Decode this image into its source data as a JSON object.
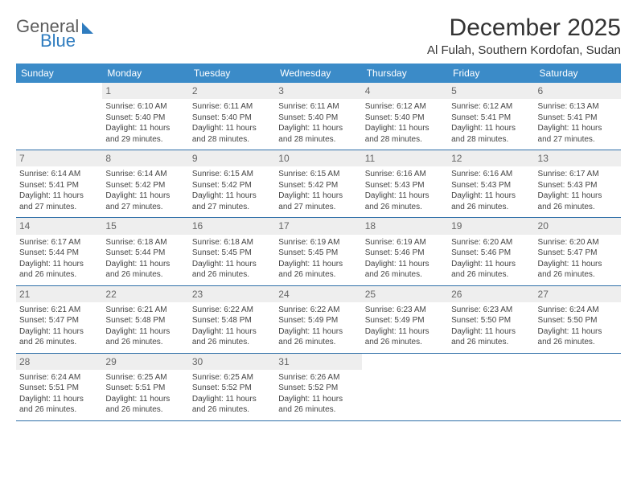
{
  "brand": {
    "general": "General",
    "blue": "Blue"
  },
  "header": {
    "month_title": "December 2025",
    "location": "Al Fulah, Southern Kordofan, Sudan"
  },
  "colors": {
    "header_bg": "#3b8bc8",
    "row_border": "#2f6fa8",
    "daynum_bg": "#eeeeee",
    "text": "#444444"
  },
  "weekdays": [
    "Sunday",
    "Monday",
    "Tuesday",
    "Wednesday",
    "Thursday",
    "Friday",
    "Saturday"
  ],
  "weeks": [
    [
      {
        "day": "",
        "lines": [
          "",
          "",
          "",
          ""
        ]
      },
      {
        "day": "1",
        "lines": [
          "Sunrise: 6:10 AM",
          "Sunset: 5:40 PM",
          "Daylight: 11 hours",
          "and 29 minutes."
        ]
      },
      {
        "day": "2",
        "lines": [
          "Sunrise: 6:11 AM",
          "Sunset: 5:40 PM",
          "Daylight: 11 hours",
          "and 28 minutes."
        ]
      },
      {
        "day": "3",
        "lines": [
          "Sunrise: 6:11 AM",
          "Sunset: 5:40 PM",
          "Daylight: 11 hours",
          "and 28 minutes."
        ]
      },
      {
        "day": "4",
        "lines": [
          "Sunrise: 6:12 AM",
          "Sunset: 5:40 PM",
          "Daylight: 11 hours",
          "and 28 minutes."
        ]
      },
      {
        "day": "5",
        "lines": [
          "Sunrise: 6:12 AM",
          "Sunset: 5:41 PM",
          "Daylight: 11 hours",
          "and 28 minutes."
        ]
      },
      {
        "day": "6",
        "lines": [
          "Sunrise: 6:13 AM",
          "Sunset: 5:41 PM",
          "Daylight: 11 hours",
          "and 27 minutes."
        ]
      }
    ],
    [
      {
        "day": "7",
        "lines": [
          "Sunrise: 6:14 AM",
          "Sunset: 5:41 PM",
          "Daylight: 11 hours",
          "and 27 minutes."
        ]
      },
      {
        "day": "8",
        "lines": [
          "Sunrise: 6:14 AM",
          "Sunset: 5:42 PM",
          "Daylight: 11 hours",
          "and 27 minutes."
        ]
      },
      {
        "day": "9",
        "lines": [
          "Sunrise: 6:15 AM",
          "Sunset: 5:42 PM",
          "Daylight: 11 hours",
          "and 27 minutes."
        ]
      },
      {
        "day": "10",
        "lines": [
          "Sunrise: 6:15 AM",
          "Sunset: 5:42 PM",
          "Daylight: 11 hours",
          "and 27 minutes."
        ]
      },
      {
        "day": "11",
        "lines": [
          "Sunrise: 6:16 AM",
          "Sunset: 5:43 PM",
          "Daylight: 11 hours",
          "and 26 minutes."
        ]
      },
      {
        "day": "12",
        "lines": [
          "Sunrise: 6:16 AM",
          "Sunset: 5:43 PM",
          "Daylight: 11 hours",
          "and 26 minutes."
        ]
      },
      {
        "day": "13",
        "lines": [
          "Sunrise: 6:17 AM",
          "Sunset: 5:43 PM",
          "Daylight: 11 hours",
          "and 26 minutes."
        ]
      }
    ],
    [
      {
        "day": "14",
        "lines": [
          "Sunrise: 6:17 AM",
          "Sunset: 5:44 PM",
          "Daylight: 11 hours",
          "and 26 minutes."
        ]
      },
      {
        "day": "15",
        "lines": [
          "Sunrise: 6:18 AM",
          "Sunset: 5:44 PM",
          "Daylight: 11 hours",
          "and 26 minutes."
        ]
      },
      {
        "day": "16",
        "lines": [
          "Sunrise: 6:18 AM",
          "Sunset: 5:45 PM",
          "Daylight: 11 hours",
          "and 26 minutes."
        ]
      },
      {
        "day": "17",
        "lines": [
          "Sunrise: 6:19 AM",
          "Sunset: 5:45 PM",
          "Daylight: 11 hours",
          "and 26 minutes."
        ]
      },
      {
        "day": "18",
        "lines": [
          "Sunrise: 6:19 AM",
          "Sunset: 5:46 PM",
          "Daylight: 11 hours",
          "and 26 minutes."
        ]
      },
      {
        "day": "19",
        "lines": [
          "Sunrise: 6:20 AM",
          "Sunset: 5:46 PM",
          "Daylight: 11 hours",
          "and 26 minutes."
        ]
      },
      {
        "day": "20",
        "lines": [
          "Sunrise: 6:20 AM",
          "Sunset: 5:47 PM",
          "Daylight: 11 hours",
          "and 26 minutes."
        ]
      }
    ],
    [
      {
        "day": "21",
        "lines": [
          "Sunrise: 6:21 AM",
          "Sunset: 5:47 PM",
          "Daylight: 11 hours",
          "and 26 minutes."
        ]
      },
      {
        "day": "22",
        "lines": [
          "Sunrise: 6:21 AM",
          "Sunset: 5:48 PM",
          "Daylight: 11 hours",
          "and 26 minutes."
        ]
      },
      {
        "day": "23",
        "lines": [
          "Sunrise: 6:22 AM",
          "Sunset: 5:48 PM",
          "Daylight: 11 hours",
          "and 26 minutes."
        ]
      },
      {
        "day": "24",
        "lines": [
          "Sunrise: 6:22 AM",
          "Sunset: 5:49 PM",
          "Daylight: 11 hours",
          "and 26 minutes."
        ]
      },
      {
        "day": "25",
        "lines": [
          "Sunrise: 6:23 AM",
          "Sunset: 5:49 PM",
          "Daylight: 11 hours",
          "and 26 minutes."
        ]
      },
      {
        "day": "26",
        "lines": [
          "Sunrise: 6:23 AM",
          "Sunset: 5:50 PM",
          "Daylight: 11 hours",
          "and 26 minutes."
        ]
      },
      {
        "day": "27",
        "lines": [
          "Sunrise: 6:24 AM",
          "Sunset: 5:50 PM",
          "Daylight: 11 hours",
          "and 26 minutes."
        ]
      }
    ],
    [
      {
        "day": "28",
        "lines": [
          "Sunrise: 6:24 AM",
          "Sunset: 5:51 PM",
          "Daylight: 11 hours",
          "and 26 minutes."
        ]
      },
      {
        "day": "29",
        "lines": [
          "Sunrise: 6:25 AM",
          "Sunset: 5:51 PM",
          "Daylight: 11 hours",
          "and 26 minutes."
        ]
      },
      {
        "day": "30",
        "lines": [
          "Sunrise: 6:25 AM",
          "Sunset: 5:52 PM",
          "Daylight: 11 hours",
          "and 26 minutes."
        ]
      },
      {
        "day": "31",
        "lines": [
          "Sunrise: 6:26 AM",
          "Sunset: 5:52 PM",
          "Daylight: 11 hours",
          "and 26 minutes."
        ]
      },
      {
        "day": "",
        "lines": [
          "",
          "",
          "",
          ""
        ]
      },
      {
        "day": "",
        "lines": [
          "",
          "",
          "",
          ""
        ]
      },
      {
        "day": "",
        "lines": [
          "",
          "",
          "",
          ""
        ]
      }
    ]
  ]
}
